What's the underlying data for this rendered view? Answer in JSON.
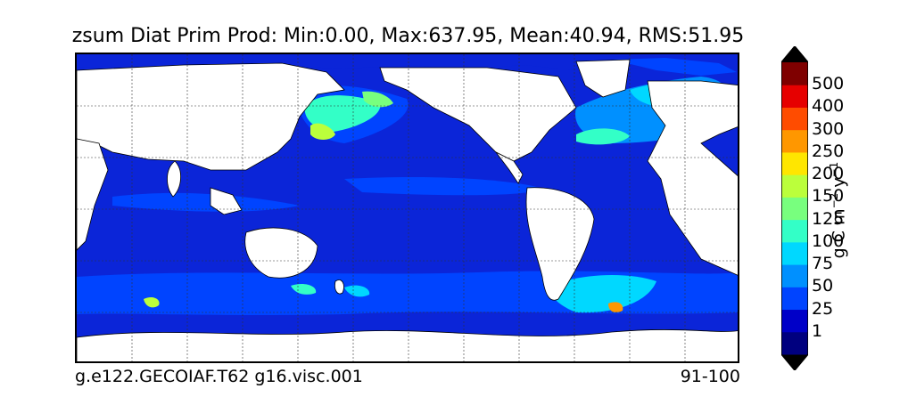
{
  "title": "zsum Diat Prim Prod: Min:0.00, Max:637.95, Mean:40.94, RMS:51.95",
  "footer": {
    "left": "g.e122.GECOIAF.T62 g16.visc.001",
    "right": "91-100"
  },
  "colorbar": {
    "label_text": "g C m",
    "label_exp1": "−2",
    "label_mid": " y",
    "label_exp2": "−1",
    "ticks": [
      "1",
      "25",
      "50",
      "75",
      "100",
      "125",
      "150",
      "200",
      "250",
      "300",
      "400",
      "500"
    ],
    "colors": [
      "#00007f",
      "#0000c8",
      "#0044ff",
      "#0090ff",
      "#00d8ff",
      "#33ffc7",
      "#78ff7e",
      "#bbff3b",
      "#ffe600",
      "#ff9700",
      "#ff4c00",
      "#e60000",
      "#7f0000"
    ],
    "extend_low": "#000000",
    "extend_high": "#000000"
  },
  "map": {
    "ocean_base_color": "#0b25d8",
    "land_color": "#ffffff",
    "grid": true
  }
}
